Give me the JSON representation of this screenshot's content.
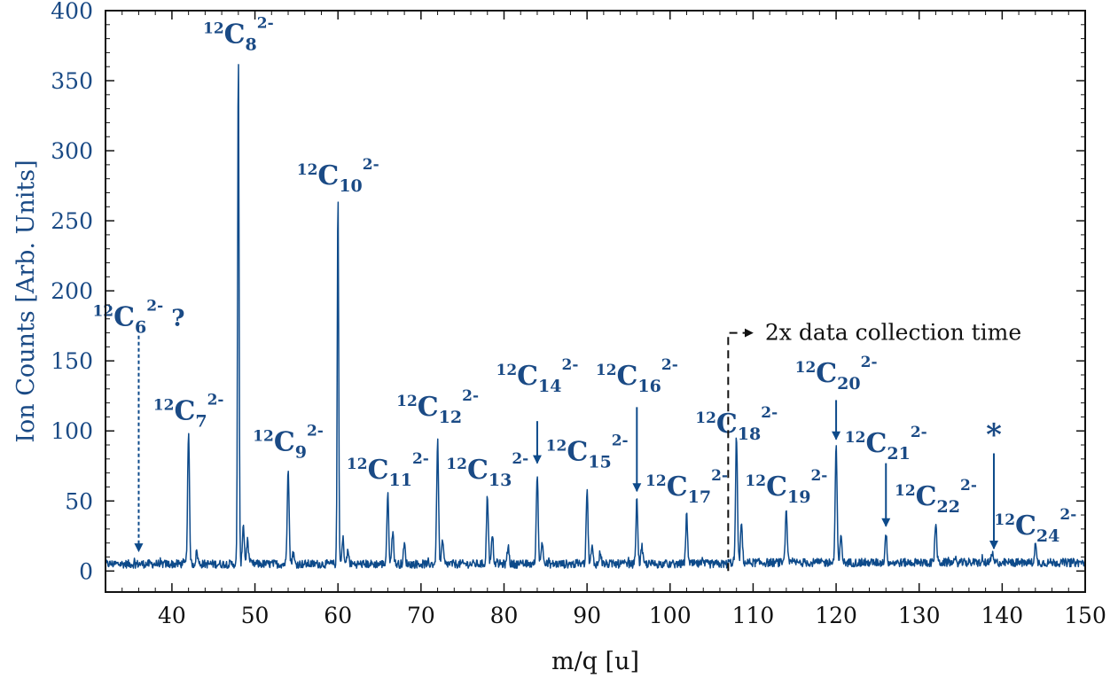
{
  "chart_data": {
    "type": "line",
    "xlabel": "m/q [u]",
    "ylabel": "Ion Counts [Arb. Units]",
    "xlim": [
      32,
      150
    ],
    "ylim": [
      -15,
      400
    ],
    "x_ticks": [
      40,
      50,
      60,
      70,
      80,
      90,
      100,
      110,
      120,
      130,
      140,
      150
    ],
    "y_ticks": [
      0,
      50,
      100,
      150,
      200,
      250,
      300,
      350,
      400
    ],
    "colors": {
      "series": "#0d4a8a",
      "text": "#1a4a85"
    },
    "baseline": 5,
    "baseline_after_break": 6,
    "peaks": [
      {
        "x": 42.0,
        "y": 97
      },
      {
        "x": 43.0,
        "y": 14
      },
      {
        "x": 48.0,
        "y": 372
      },
      {
        "x": 48.6,
        "y": 34
      },
      {
        "x": 49.1,
        "y": 22
      },
      {
        "x": 54.0,
        "y": 75
      },
      {
        "x": 54.6,
        "y": 13
      },
      {
        "x": 60.0,
        "y": 270
      },
      {
        "x": 60.6,
        "y": 23
      },
      {
        "x": 61.2,
        "y": 14
      },
      {
        "x": 66.0,
        "y": 54
      },
      {
        "x": 66.6,
        "y": 29
      },
      {
        "x": 68.0,
        "y": 19
      },
      {
        "x": 72.0,
        "y": 93
      },
      {
        "x": 72.6,
        "y": 21
      },
      {
        "x": 78.0,
        "y": 54
      },
      {
        "x": 78.6,
        "y": 25
      },
      {
        "x": 80.5,
        "y": 18
      },
      {
        "x": 84.0,
        "y": 71
      },
      {
        "x": 84.6,
        "y": 21
      },
      {
        "x": 90.0,
        "y": 58
      },
      {
        "x": 90.6,
        "y": 17
      },
      {
        "x": 91.6,
        "y": 14
      },
      {
        "x": 96.0,
        "y": 51
      },
      {
        "x": 96.6,
        "y": 17
      },
      {
        "x": 102.0,
        "y": 40
      },
      {
        "x": 108.0,
        "y": 96
      },
      {
        "x": 108.6,
        "y": 34
      },
      {
        "x": 114.0,
        "y": 42
      },
      {
        "x": 120.0,
        "y": 90
      },
      {
        "x": 120.6,
        "y": 25
      },
      {
        "x": 126.0,
        "y": 27
      },
      {
        "x": 132.0,
        "y": 35
      },
      {
        "x": 138.8,
        "y": 12
      },
      {
        "x": 144.0,
        "y": 19
      }
    ],
    "break_line": {
      "x": 107,
      "y_top": 170,
      "arrow_to_x": 114,
      "label": "2x data collection time"
    },
    "annotations": [
      {
        "id": "c6",
        "sup": "12",
        "base": "C",
        "sub": "6",
        "charge": "2-",
        "suffix": " ?",
        "x": 36,
        "label_y": 175,
        "arrow_from": 168,
        "arrow_to": 14,
        "dashed": true
      },
      {
        "id": "c7",
        "sup": "12",
        "base": "C",
        "sub": "7",
        "charge": "2-",
        "suffix": "",
        "x": 42,
        "label_y": 108
      },
      {
        "id": "c8",
        "sup": "12",
        "base": "C",
        "sub": "8",
        "charge": "2-",
        "suffix": "",
        "x": 48,
        "label_y": 377
      },
      {
        "id": "c9",
        "sup": "12",
        "base": "C",
        "sub": "9",
        "charge": "2-",
        "suffix": "",
        "x": 54,
        "label_y": 86
      },
      {
        "id": "c10",
        "sup": "12",
        "base": "C",
        "sub": "10",
        "charge": "2-",
        "suffix": "",
        "x": 60,
        "label_y": 276
      },
      {
        "id": "c11",
        "sup": "12",
        "base": "C",
        "sub": "11",
        "charge": "2-",
        "suffix": "",
        "x": 66,
        "label_y": 66
      },
      {
        "id": "c12",
        "sup": "12",
        "base": "C",
        "sub": "12",
        "charge": "2-",
        "suffix": "",
        "x": 72,
        "label_y": 111
      },
      {
        "id": "c13",
        "sup": "12",
        "base": "C",
        "sub": "13",
        "charge": "2-",
        "suffix": "",
        "x": 78,
        "label_y": 66
      },
      {
        "id": "c14",
        "sup": "12",
        "base": "C",
        "sub": "14",
        "charge": "2-",
        "suffix": "",
        "x": 84,
        "label_y": 133,
        "arrow_from": 107,
        "arrow_to": 77
      },
      {
        "id": "c15",
        "sup": "12",
        "base": "C",
        "sub": "15",
        "charge": "2-",
        "suffix": "",
        "x": 90,
        "label_y": 79
      },
      {
        "id": "c16",
        "sup": "12",
        "base": "C",
        "sub": "16",
        "charge": "2-",
        "suffix": "",
        "x": 96,
        "label_y": 133,
        "arrow_from": 117,
        "arrow_to": 57
      },
      {
        "id": "c17",
        "sup": "12",
        "base": "C",
        "sub": "17",
        "charge": "2-",
        "suffix": "",
        "x": 102,
        "label_y": 54
      },
      {
        "id": "c18",
        "sup": "12",
        "base": "C",
        "sub": "18",
        "charge": "2-",
        "suffix": "",
        "x": 108,
        "label_y": 99
      },
      {
        "id": "c19",
        "sup": "12",
        "base": "C",
        "sub": "19",
        "charge": "2-",
        "suffix": "",
        "x": 114,
        "label_y": 54
      },
      {
        "id": "c20",
        "sup": "12",
        "base": "C",
        "sub": "20",
        "charge": "2-",
        "suffix": "",
        "x": 120,
        "label_y": 135,
        "arrow_from": 122,
        "arrow_to": 94
      },
      {
        "id": "c21",
        "sup": "12",
        "base": "C",
        "sub": "21",
        "charge": "2-",
        "suffix": "",
        "x": 126,
        "label_y": 85,
        "arrow_from": 77,
        "arrow_to": 32
      },
      {
        "id": "c22",
        "sup": "12",
        "base": "C",
        "sub": "22",
        "charge": "2-",
        "suffix": "",
        "x": 132,
        "label_y": 47
      },
      {
        "id": "c24",
        "sup": "12",
        "base": "C",
        "sub": "24",
        "charge": "2-",
        "suffix": "",
        "x": 144,
        "label_y": 26
      }
    ],
    "star_marker": {
      "text": "*",
      "x": 139,
      "label_y": 90,
      "arrow_from": 84,
      "arrow_to": 16
    }
  }
}
